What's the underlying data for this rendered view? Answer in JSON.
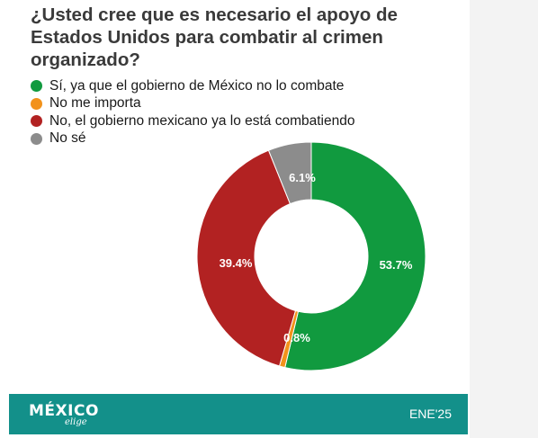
{
  "title": "¿Usted cree que es necesario el apoyo de Estados Unidos para combatir al crimen organizado?",
  "chart_data": {
    "type": "pie",
    "title": "¿Usted cree que es necesario el apoyo de Estados Unidos para combatir al crimen organizado?",
    "categories": [
      "Sí, ya que el gobierno de México no lo combate",
      "No me importa",
      "No, el gobierno mexicano ya lo está combatiendo",
      "No sé"
    ],
    "values": [
      53.7,
      0.8,
      39.4,
      6.1
    ],
    "labels": [
      "53.7%",
      "0.8%",
      "39.4%",
      "6.1%"
    ],
    "colors": [
      "#119a3f",
      "#f2921b",
      "#b22222",
      "#8c8c8c"
    ],
    "legend": "top-left",
    "donut": true
  },
  "footer": {
    "logo": "MÉXICO",
    "logo_sub": "elige",
    "date": "ENE'25"
  }
}
